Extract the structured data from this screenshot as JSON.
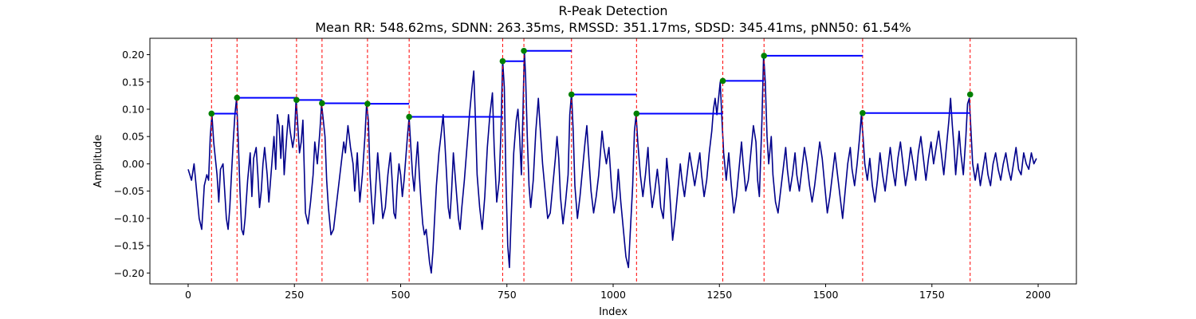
{
  "chart_data": {
    "type": "line",
    "title": "R-Peak Detection",
    "subtitle": "Mean RR: 548.62ms, SDNN: 263.35ms, RMSSD: 351.17ms, SDSD: 345.41ms, pNN50: 61.54%",
    "xlabel": "Index",
    "ylabel": "Amplitude",
    "xlim": [
      -90,
      2090
    ],
    "ylim": [
      -0.22,
      0.23
    ],
    "xticks": [
      0,
      250,
      500,
      750,
      1000,
      1250,
      1500,
      1750,
      2000
    ],
    "yticks": [
      -0.2,
      -0.15,
      -0.1,
      -0.05,
      0.0,
      0.05,
      0.1,
      0.15,
      0.2
    ],
    "grid": false,
    "legend": "none",
    "colors": {
      "signal": "#00008b",
      "peak_line": "#ff0000",
      "peak_marker": "#008000",
      "rr_segment": "#0000ff"
    },
    "signal_keypoints": [
      [
        0,
        -0.01
      ],
      [
        8,
        -0.03
      ],
      [
        14,
        0.0
      ],
      [
        20,
        -0.05
      ],
      [
        26,
        -0.1
      ],
      [
        32,
        -0.12
      ],
      [
        38,
        -0.04
      ],
      [
        44,
        -0.02
      ],
      [
        48,
        -0.03
      ],
      [
        52,
        0.05
      ],
      [
        56,
        0.09
      ],
      [
        60,
        0.04
      ],
      [
        64,
        0.01
      ],
      [
        68,
        -0.02
      ],
      [
        72,
        -0.07
      ],
      [
        76,
        -0.01
      ],
      [
        82,
        0.0
      ],
      [
        86,
        -0.05
      ],
      [
        90,
        -0.1
      ],
      [
        94,
        -0.12
      ],
      [
        98,
        -0.08
      ],
      [
        102,
        -0.02
      ],
      [
        106,
        0.04
      ],
      [
        110,
        0.09
      ],
      [
        114,
        0.12
      ],
      [
        118,
        0.04
      ],
      [
        122,
        -0.05
      ],
      [
        126,
        -0.12
      ],
      [
        130,
        -0.13
      ],
      [
        134,
        -0.1
      ],
      [
        140,
        -0.03
      ],
      [
        146,
        0.02
      ],
      [
        150,
        -0.06
      ],
      [
        154,
        0.01
      ],
      [
        160,
        0.03
      ],
      [
        164,
        -0.02
      ],
      [
        168,
        -0.08
      ],
      [
        172,
        -0.05
      ],
      [
        176,
        0.0
      ],
      [
        180,
        0.03
      ],
      [
        186,
        -0.02
      ],
      [
        190,
        -0.07
      ],
      [
        196,
        -0.01
      ],
      [
        202,
        0.05
      ],
      [
        206,
        -0.01
      ],
      [
        210,
        0.09
      ],
      [
        214,
        0.07
      ],
      [
        218,
        0.01
      ],
      [
        222,
        0.07
      ],
      [
        226,
        -0.02
      ],
      [
        232,
        0.05
      ],
      [
        236,
        0.09
      ],
      [
        240,
        0.06
      ],
      [
        246,
        0.03
      ],
      [
        250,
        0.05
      ],
      [
        254,
        0.12
      ],
      [
        258,
        0.07
      ],
      [
        262,
        0.02
      ],
      [
        266,
        0.04
      ],
      [
        270,
        0.08
      ],
      [
        276,
        -0.09
      ],
      [
        282,
        -0.11
      ],
      [
        288,
        -0.07
      ],
      [
        294,
        -0.02
      ],
      [
        298,
        0.04
      ],
      [
        304,
        0.0
      ],
      [
        310,
        0.06
      ],
      [
        314,
        0.11
      ],
      [
        318,
        0.08
      ],
      [
        322,
        0.05
      ],
      [
        326,
        -0.03
      ],
      [
        330,
        -0.08
      ],
      [
        336,
        -0.13
      ],
      [
        342,
        -0.12
      ],
      [
        348,
        -0.08
      ],
      [
        354,
        -0.04
      ],
      [
        360,
        0.0
      ],
      [
        366,
        0.04
      ],
      [
        370,
        0.02
      ],
      [
        376,
        0.07
      ],
      [
        382,
        0.03
      ],
      [
        388,
        0.0
      ],
      [
        392,
        -0.05
      ],
      [
        398,
        0.02
      ],
      [
        404,
        -0.07
      ],
      [
        410,
        -0.02
      ],
      [
        416,
        0.05
      ],
      [
        420,
        0.11
      ],
      [
        424,
        0.08
      ],
      [
        428,
        -0.02
      ],
      [
        432,
        -0.07
      ],
      [
        436,
        -0.11
      ],
      [
        440,
        -0.06
      ],
      [
        446,
        0.02
      ],
      [
        452,
        -0.04
      ],
      [
        458,
        -0.1
      ],
      [
        464,
        -0.08
      ],
      [
        470,
        -0.02
      ],
      [
        476,
        0.02
      ],
      [
        480,
        -0.03
      ],
      [
        484,
        -0.09
      ],
      [
        488,
        -0.1
      ],
      [
        492,
        -0.04
      ],
      [
        496,
        0.0
      ],
      [
        500,
        -0.02
      ],
      [
        504,
        -0.06
      ],
      [
        508,
        -0.03
      ],
      [
        512,
        0.01
      ],
      [
        516,
        0.05
      ],
      [
        520,
        0.085
      ],
      [
        524,
        0.03
      ],
      [
        528,
        -0.02
      ],
      [
        532,
        -0.05
      ],
      [
        536,
        0.0
      ],
      [
        540,
        0.04
      ],
      [
        544,
        -0.02
      ],
      [
        548,
        -0.07
      ],
      [
        552,
        -0.11
      ],
      [
        556,
        -0.13
      ],
      [
        560,
        -0.12
      ],
      [
        564,
        -0.15
      ],
      [
        568,
        -0.18
      ],
      [
        572,
        -0.2
      ],
      [
        576,
        -0.16
      ],
      [
        580,
        -0.1
      ],
      [
        584,
        -0.04
      ],
      [
        590,
        0.02
      ],
      [
        596,
        0.06
      ],
      [
        600,
        0.09
      ],
      [
        604,
        0.04
      ],
      [
        608,
        -0.02
      ],
      [
        612,
        -0.08
      ],
      [
        616,
        -0.1
      ],
      [
        620,
        -0.05
      ],
      [
        624,
        0.02
      ],
      [
        630,
        -0.04
      ],
      [
        636,
        -0.1
      ],
      [
        640,
        -0.12
      ],
      [
        644,
        -0.08
      ],
      [
        650,
        -0.03
      ],
      [
        656,
        0.03
      ],
      [
        662,
        0.09
      ],
      [
        668,
        0.14
      ],
      [
        672,
        0.17
      ],
      [
        676,
        0.08
      ],
      [
        680,
        -0.02
      ],
      [
        686,
        -0.08
      ],
      [
        692,
        -0.12
      ],
      [
        698,
        -0.06
      ],
      [
        704,
        0.03
      ],
      [
        710,
        0.09
      ],
      [
        716,
        0.13
      ],
      [
        720,
        0.03
      ],
      [
        726,
        -0.07
      ],
      [
        732,
        -0.03
      ],
      [
        736,
        0.06
      ],
      [
        740,
        0.19
      ],
      [
        744,
        0.14
      ],
      [
        748,
        -0.04
      ],
      [
        752,
        -0.15
      ],
      [
        756,
        -0.19
      ],
      [
        760,
        -0.1
      ],
      [
        766,
        0.02
      ],
      [
        772,
        0.08
      ],
      [
        776,
        0.1
      ],
      [
        780,
        0.05
      ],
      [
        784,
        -0.02
      ],
      [
        788,
        0.1
      ],
      [
        791,
        0.21
      ],
      [
        794,
        0.16
      ],
      [
        798,
        0.05
      ],
      [
        802,
        -0.04
      ],
      [
        806,
        -0.08
      ],
      [
        812,
        -0.03
      ],
      [
        818,
        0.06
      ],
      [
        824,
        0.12
      ],
      [
        828,
        0.07
      ],
      [
        834,
        0.0
      ],
      [
        840,
        -0.05
      ],
      [
        846,
        -0.1
      ],
      [
        852,
        -0.09
      ],
      [
        858,
        -0.04
      ],
      [
        864,
        0.01
      ],
      [
        868,
        0.05
      ],
      [
        872,
        0.01
      ],
      [
        876,
        -0.06
      ],
      [
        882,
        -0.11
      ],
      [
        888,
        -0.07
      ],
      [
        894,
        -0.02
      ],
      [
        898,
        0.09
      ],
      [
        902,
        0.13
      ],
      [
        906,
        0.06
      ],
      [
        910,
        -0.04
      ],
      [
        916,
        -0.1
      ],
      [
        922,
        -0.06
      ],
      [
        928,
        -0.01
      ],
      [
        934,
        0.04
      ],
      [
        938,
        0.07
      ],
      [
        942,
        0.02
      ],
      [
        948,
        -0.05
      ],
      [
        954,
        -0.09
      ],
      [
        960,
        -0.06
      ],
      [
        966,
        -0.02
      ],
      [
        970,
        0.02
      ],
      [
        974,
        0.06
      ],
      [
        978,
        0.03
      ],
      [
        984,
        0.0
      ],
      [
        990,
        0.03
      ],
      [
        996,
        -0.04
      ],
      [
        1002,
        -0.09
      ],
      [
        1008,
        -0.06
      ],
      [
        1012,
        -0.01
      ],
      [
        1018,
        -0.07
      ],
      [
        1024,
        -0.12
      ],
      [
        1030,
        -0.17
      ],
      [
        1036,
        -0.19
      ],
      [
        1040,
        -0.13
      ],
      [
        1046,
        -0.04
      ],
      [
        1050,
        0.06
      ],
      [
        1054,
        0.09
      ],
      [
        1058,
        0.04
      ],
      [
        1064,
        -0.02
      ],
      [
        1070,
        -0.06
      ],
      [
        1076,
        -0.02
      ],
      [
        1082,
        0.03
      ],
      [
        1086,
        -0.03
      ],
      [
        1092,
        -0.08
      ],
      [
        1098,
        -0.05
      ],
      [
        1104,
        -0.01
      ],
      [
        1108,
        -0.04
      ],
      [
        1112,
        -0.08
      ],
      [
        1118,
        -0.1
      ],
      [
        1122,
        -0.05
      ],
      [
        1126,
        0.01
      ],
      [
        1132,
        -0.04
      ],
      [
        1136,
        -0.09
      ],
      [
        1140,
        -0.14
      ],
      [
        1146,
        -0.1
      ],
      [
        1152,
        -0.05
      ],
      [
        1158,
        0.0
      ],
      [
        1162,
        -0.03
      ],
      [
        1168,
        -0.06
      ],
      [
        1174,
        -0.02
      ],
      [
        1180,
        0.02
      ],
      [
        1186,
        -0.01
      ],
      [
        1192,
        -0.04
      ],
      [
        1198,
        -0.01
      ],
      [
        1204,
        0.02
      ],
      [
        1208,
        -0.02
      ],
      [
        1214,
        -0.06
      ],
      [
        1220,
        -0.03
      ],
      [
        1226,
        0.02
      ],
      [
        1232,
        0.06
      ],
      [
        1236,
        0.1
      ],
      [
        1240,
        0.12
      ],
      [
        1244,
        0.09
      ],
      [
        1248,
        0.12
      ],
      [
        1252,
        0.15
      ],
      [
        1256,
        0.08
      ],
      [
        1260,
        0.02
      ],
      [
        1266,
        -0.03
      ],
      [
        1272,
        0.02
      ],
      [
        1278,
        -0.04
      ],
      [
        1284,
        -0.09
      ],
      [
        1290,
        -0.06
      ],
      [
        1296,
        -0.01
      ],
      [
        1302,
        0.04
      ],
      [
        1306,
        0.0
      ],
      [
        1312,
        -0.05
      ],
      [
        1318,
        -0.03
      ],
      [
        1324,
        0.02
      ],
      [
        1330,
        0.07
      ],
      [
        1336,
        0.04
      ],
      [
        1340,
        -0.03
      ],
      [
        1344,
        -0.06
      ],
      [
        1350,
        0.08
      ],
      [
        1354,
        0.2
      ],
      [
        1358,
        0.15
      ],
      [
        1362,
        0.05
      ],
      [
        1366,
        0.0
      ],
      [
        1372,
        0.05
      ],
      [
        1376,
        -0.02
      ],
      [
        1382,
        -0.07
      ],
      [
        1388,
        -0.09
      ],
      [
        1394,
        -0.05
      ],
      [
        1400,
        -0.01
      ],
      [
        1406,
        0.03
      ],
      [
        1410,
        -0.01
      ],
      [
        1416,
        -0.05
      ],
      [
        1422,
        -0.02
      ],
      [
        1428,
        0.02
      ],
      [
        1432,
        -0.02
      ],
      [
        1438,
        -0.05
      ],
      [
        1444,
        -0.01
      ],
      [
        1450,
        0.03
      ],
      [
        1456,
        0.0
      ],
      [
        1462,
        -0.04
      ],
      [
        1468,
        -0.07
      ],
      [
        1474,
        -0.04
      ],
      [
        1480,
        0.0
      ],
      [
        1486,
        0.04
      ],
      [
        1492,
        0.01
      ],
      [
        1498,
        -0.04
      ],
      [
        1504,
        -0.09
      ],
      [
        1510,
        -0.06
      ],
      [
        1516,
        -0.02
      ],
      [
        1522,
        0.02
      ],
      [
        1528,
        -0.02
      ],
      [
        1534,
        -0.06
      ],
      [
        1540,
        -0.1
      ],
      [
        1546,
        -0.05
      ],
      [
        1552,
        0.0
      ],
      [
        1558,
        0.03
      ],
      [
        1562,
        -0.01
      ],
      [
        1568,
        -0.04
      ],
      [
        1574,
        0.0
      ],
      [
        1580,
        0.05
      ],
      [
        1584,
        0.09
      ],
      [
        1588,
        0.05
      ],
      [
        1592,
        0.0
      ],
      [
        1598,
        -0.03
      ],
      [
        1604,
        0.01
      ],
      [
        1610,
        -0.04
      ],
      [
        1616,
        -0.07
      ],
      [
        1622,
        -0.03
      ],
      [
        1628,
        0.02
      ],
      [
        1634,
        -0.02
      ],
      [
        1640,
        -0.05
      ],
      [
        1646,
        -0.01
      ],
      [
        1652,
        0.03
      ],
      [
        1658,
        -0.01
      ],
      [
        1664,
        -0.04
      ],
      [
        1670,
        0.01
      ],
      [
        1676,
        0.04
      ],
      [
        1682,
        0.0
      ],
      [
        1688,
        -0.04
      ],
      [
        1694,
        -0.01
      ],
      [
        1700,
        0.03
      ],
      [
        1706,
        0.0
      ],
      [
        1712,
        -0.03
      ],
      [
        1718,
        0.02
      ],
      [
        1724,
        0.05
      ],
      [
        1730,
        0.01
      ],
      [
        1736,
        -0.03
      ],
      [
        1742,
        0.01
      ],
      [
        1748,
        0.04
      ],
      [
        1754,
        0.0
      ],
      [
        1760,
        0.03
      ],
      [
        1766,
        0.06
      ],
      [
        1772,
        0.02
      ],
      [
        1778,
        -0.02
      ],
      [
        1784,
        0.03
      ],
      [
        1790,
        0.08
      ],
      [
        1794,
        0.12
      ],
      [
        1798,
        0.07
      ],
      [
        1802,
        0.03
      ],
      [
        1806,
        -0.02
      ],
      [
        1810,
        0.02
      ],
      [
        1814,
        0.06
      ],
      [
        1818,
        0.02
      ],
      [
        1824,
        -0.02
      ],
      [
        1830,
        0.05
      ],
      [
        1834,
        0.11
      ],
      [
        1838,
        0.12
      ],
      [
        1842,
        0.06
      ],
      [
        1846,
        0.0
      ],
      [
        1852,
        -0.03
      ],
      [
        1858,
        0.0
      ],
      [
        1864,
        -0.04
      ],
      [
        1870,
        -0.01
      ],
      [
        1876,
        0.02
      ],
      [
        1882,
        -0.02
      ],
      [
        1888,
        -0.04
      ],
      [
        1894,
        0.0
      ],
      [
        1900,
        0.02
      ],
      [
        1906,
        -0.01
      ],
      [
        1912,
        -0.03
      ],
      [
        1918,
        0.0
      ],
      [
        1924,
        0.02
      ],
      [
        1930,
        -0.01
      ],
      [
        1936,
        -0.03
      ],
      [
        1942,
        0.0
      ],
      [
        1948,
        0.03
      ],
      [
        1954,
        -0.01
      ],
      [
        1960,
        -0.02
      ],
      [
        1966,
        0.02
      ],
      [
        1972,
        0.0
      ],
      [
        1978,
        -0.01
      ],
      [
        1984,
        0.02
      ],
      [
        1990,
        0.0
      ],
      [
        1996,
        0.01
      ]
    ],
    "peaks": [
      {
        "x": 55,
        "y": 0.092
      },
      {
        "x": 115,
        "y": 0.121
      },
      {
        "x": 255,
        "y": 0.117
      },
      {
        "x": 315,
        "y": 0.111
      },
      {
        "x": 422,
        "y": 0.11
      },
      {
        "x": 520,
        "y": 0.086
      },
      {
        "x": 740,
        "y": 0.188
      },
      {
        "x": 790,
        "y": 0.207
      },
      {
        "x": 902,
        "y": 0.127
      },
      {
        "x": 1055,
        "y": 0.092
      },
      {
        "x": 1258,
        "y": 0.152
      },
      {
        "x": 1355,
        "y": 0.198
      },
      {
        "x": 1587,
        "y": 0.093
      },
      {
        "x": 1840,
        "y": 0.127
      }
    ]
  }
}
